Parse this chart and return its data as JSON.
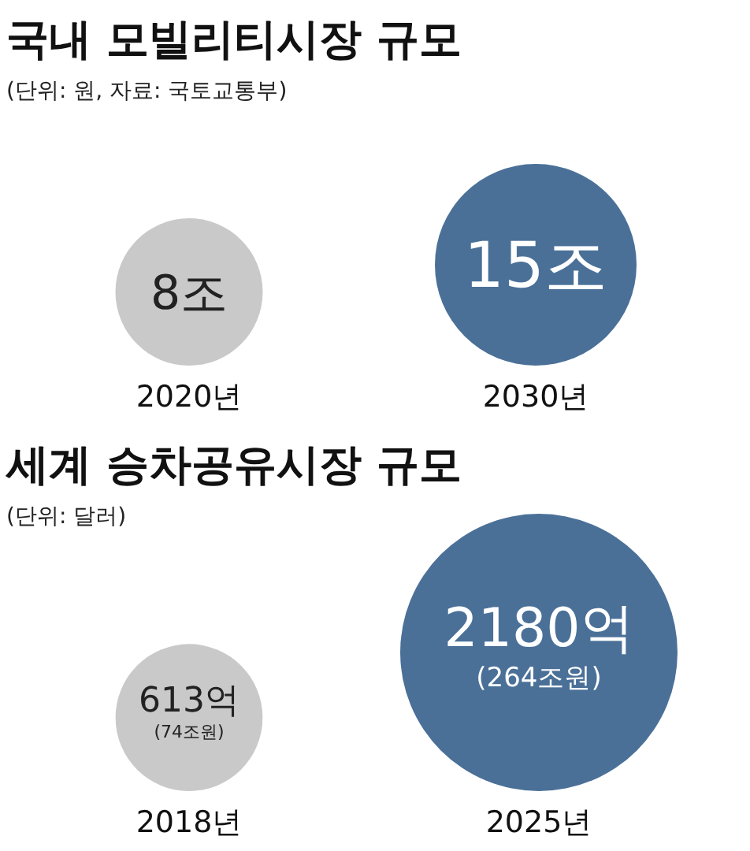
{
  "chart_data": [
    {
      "type": "other",
      "title": "국내 모빌리티시장 규모",
      "subtitle": "(단위: 원, 자료: 국토교통부)",
      "categories": [
        "2020년",
        "2030년"
      ],
      "values": [
        8,
        15
      ],
      "value_labels": [
        "8조",
        "15조"
      ],
      "colors": [
        "#c9c9c9",
        "#4a7098"
      ]
    },
    {
      "type": "other",
      "title": "세계 승차공유시장 규모",
      "subtitle": "(단위: 달러)",
      "categories": [
        "2018년",
        "2025년"
      ],
      "values": [
        613,
        2180
      ],
      "value_labels": [
        "613억\n(74조원)",
        "2180억\n(264조원)"
      ],
      "colors": [
        "#c9c9c9",
        "#4a7098"
      ]
    }
  ]
}
